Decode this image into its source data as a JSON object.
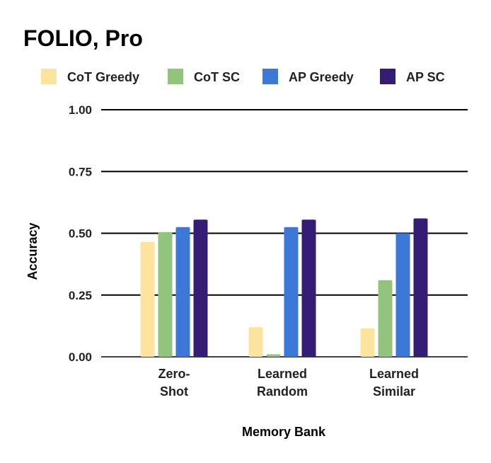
{
  "chart_data": {
    "type": "bar",
    "title": "FOLIO, Pro",
    "xlabel": "Memory Bank",
    "ylabel": "Accuracy",
    "ylim": [
      0,
      1
    ],
    "yticks": [
      "0.00",
      "0.25",
      "0.50",
      "0.75",
      "1.00"
    ],
    "ytick_values": [
      0,
      0.25,
      0.5,
      0.75,
      1.0
    ],
    "categories": [
      [
        "Zero-",
        "Shot"
      ],
      [
        "Learned",
        "Random"
      ],
      [
        "Learned",
        "Similar"
      ]
    ],
    "series": [
      {
        "name": "CoT Greedy",
        "color": "#FCE49F",
        "values": [
          0.465,
          0.12,
          0.115
        ]
      },
      {
        "name": "CoT SC",
        "color": "#93C47D",
        "values": [
          0.505,
          0.01,
          0.31
        ]
      },
      {
        "name": "AP Greedy",
        "color": "#3C78D8",
        "values": [
          0.525,
          0.525,
          0.5
        ]
      },
      {
        "name": "AP SC",
        "color": "#351C75",
        "values": [
          0.555,
          0.555,
          0.56
        ]
      }
    ],
    "legend_position": "top",
    "grid": true
  }
}
